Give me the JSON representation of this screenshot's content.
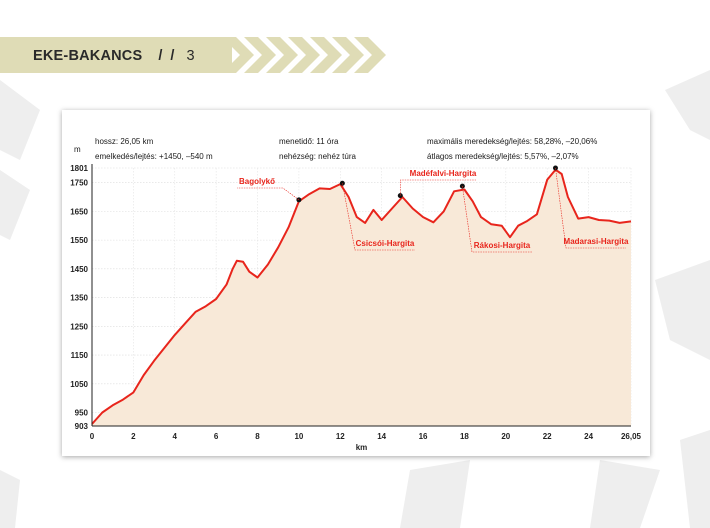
{
  "header": {
    "title": "EKE-BAKANCS",
    "separator": "/ /",
    "page_number": "3"
  },
  "info": {
    "length": "hossz: 26,05 km",
    "elevation_change": "emelkedés/lejtés: +1450, –540 m",
    "duration": "menetidő: 11 óra",
    "difficulty": "nehézség: nehéz túra",
    "max_gradient": "maximális meredekség/lejtés: 58,28%, –20,06%",
    "avg_gradient": "átlagos meredekség/lejtés: 5,57%, –2,07%"
  },
  "colors": {
    "line": "#e8251c",
    "fill": "#f8e9d8",
    "label": "#e8251c",
    "header_band": "#dfdcb6",
    "chevron": "#dfdcb6"
  },
  "chart_data": {
    "type": "area",
    "xlabel": "km",
    "ylabel": "m",
    "xlim": [
      0,
      26.05
    ],
    "ylim": [
      903,
      1801
    ],
    "x_ticks": [
      "0",
      "2",
      "4",
      "6",
      "8",
      "10",
      "12",
      "14",
      "16",
      "18",
      "20",
      "22",
      "24",
      "26,05"
    ],
    "x_tick_values": [
      0,
      2,
      4,
      6,
      8,
      10,
      12,
      14,
      16,
      18,
      20,
      22,
      24,
      26.05
    ],
    "y_ticks": [
      "903",
      "950",
      "1050",
      "1150",
      "1250",
      "1350",
      "1450",
      "1550",
      "1650",
      "1750",
      "1801"
    ],
    "y_tick_values": [
      903,
      950,
      1050,
      1150,
      1250,
      1350,
      1450,
      1550,
      1650,
      1750,
      1801
    ],
    "grid": true,
    "x": [
      0,
      0.5,
      1,
      1.5,
      2,
      2.5,
      3,
      3.5,
      4,
      4.5,
      5,
      5.5,
      6,
      6.5,
      6.8,
      7,
      7.3,
      7.6,
      8,
      8.5,
      9,
      9.5,
      10,
      10.5,
      11,
      11.5,
      12,
      12.4,
      12.8,
      13.2,
      13.6,
      14,
      14.5,
      15,
      15.5,
      16,
      16.5,
      17,
      17.5,
      18,
      18.4,
      18.8,
      19.3,
      19.8,
      20.2,
      20.6,
      21,
      21.5,
      22,
      22.4,
      22.7,
      23,
      23.5,
      24,
      24.5,
      25,
      25.5,
      26.05
    ],
    "y": [
      910,
      950,
      975,
      995,
      1020,
      1080,
      1130,
      1175,
      1220,
      1260,
      1300,
      1320,
      1345,
      1395,
      1450,
      1478,
      1475,
      1440,
      1420,
      1465,
      1525,
      1595,
      1685,
      1710,
      1730,
      1728,
      1745,
      1700,
      1630,
      1610,
      1655,
      1620,
      1660,
      1700,
      1660,
      1630,
      1612,
      1650,
      1720,
      1726,
      1685,
      1630,
      1605,
      1600,
      1560,
      1600,
      1615,
      1640,
      1760,
      1795,
      1780,
      1700,
      1625,
      1630,
      1620,
      1618,
      1610,
      1615
    ],
    "annotations": [
      {
        "label": "Bagolykő",
        "x": 10.0,
        "y": 1690
      },
      {
        "label": "Csicsói-Hargita",
        "x": 12.1,
        "y": 1748
      },
      {
        "label": "Madéfalvi-Hargita",
        "x": 14.9,
        "y": 1705
      },
      {
        "label": "Rákosi-Hargita",
        "x": 17.9,
        "y": 1738
      },
      {
        "label": "Madarasi-Hargita",
        "x": 22.4,
        "y": 1801
      }
    ]
  }
}
